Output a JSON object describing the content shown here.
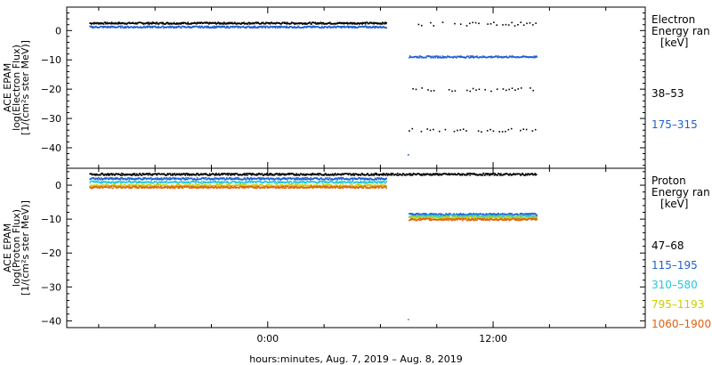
{
  "chart_data": [
    {
      "type": "scatter",
      "panel": "electron",
      "ylabel_lines": [
        "ACE EPAM",
        "log(Electron Flux)",
        "[1/(cm²s ster MeV)]"
      ],
      "ylim": [
        -47,
        8
      ],
      "yticks": [
        0,
        -10,
        -20,
        -30,
        -40
      ],
      "ytick_labels": [
        "0",
        "−10",
        "−20",
        "−30",
        "−40"
      ],
      "legend_title_lines": [
        "Electron",
        "Energy ran",
        "[keV]"
      ],
      "series": [
        {
          "name": "38–53",
          "color": "#000000",
          "segments": [
            {
              "x0": -9.5,
              "x1": 6.3,
              "y": 2.5,
              "style": "dense"
            },
            {
              "x0": 8.0,
              "x1": 14.3,
              "y": 2.2,
              "style": "sparse"
            },
            {
              "x0": 7.7,
              "x1": 14.3,
              "y": -20.2,
              "style": "sparse"
            },
            {
              "x0": 7.5,
              "x1": 14.3,
              "y": -34.0,
              "style": "sparse"
            }
          ]
        },
        {
          "name": "175–315",
          "color": "#1f5fd0",
          "segments": [
            {
              "x0": -9.5,
              "x1": 6.3,
              "y": 1.2,
              "style": "dense"
            },
            {
              "x0": 7.5,
              "x1": 14.3,
              "y": -9.0,
              "style": "dense"
            },
            {
              "x0": 7.45,
              "x1": 7.6,
              "y": -42.0,
              "style": "sparse"
            }
          ]
        }
      ]
    },
    {
      "type": "scatter",
      "panel": "proton",
      "ylabel_lines": [
        "ACE EPAM",
        "log(Proton Flux)",
        "[1/(cm²s ster MeV)]"
      ],
      "ylim": [
        -42,
        5
      ],
      "yticks": [
        0,
        -10,
        -20,
        -30,
        -40
      ],
      "ytick_labels": [
        "0",
        "−10",
        "−20",
        "−30",
        "−40"
      ],
      "legend_title_lines": [
        "Proton",
        "Energy ran",
        "[keV]"
      ],
      "series": [
        {
          "name": "47–68",
          "color": "#000000",
          "segments": [
            {
              "x0": -9.5,
              "x1": 14.3,
              "y": 3.2,
              "style": "dense"
            }
          ]
        },
        {
          "name": "115–195",
          "color": "#1f5fd0",
          "segments": [
            {
              "x0": -9.5,
              "x1": 6.3,
              "y": 1.9,
              "style": "dense"
            },
            {
              "x0": 7.5,
              "x1": 14.3,
              "y": -8.6,
              "style": "dense"
            }
          ]
        },
        {
          "name": "310–580",
          "color": "#22c8d8",
          "segments": [
            {
              "x0": -9.5,
              "x1": 6.3,
              "y": 0.9,
              "style": "dense"
            },
            {
              "x0": 7.5,
              "x1": 14.3,
              "y": -9.1,
              "style": "dense"
            }
          ]
        },
        {
          "name": "795–1193",
          "color": "#c8d000",
          "segments": [
            {
              "x0": -9.5,
              "x1": 6.3,
              "y": -0.1,
              "style": "dense"
            },
            {
              "x0": 7.5,
              "x1": 14.3,
              "y": -9.6,
              "style": "dense"
            }
          ]
        },
        {
          "name": "1060–1900",
          "color": "#e06010",
          "segments": [
            {
              "x0": -9.5,
              "x1": 6.3,
              "y": -0.6,
              "style": "dense"
            },
            {
              "x0": 7.5,
              "x1": 14.3,
              "y": -10.1,
              "style": "dense"
            },
            {
              "x0": 7.45,
              "x1": 7.6,
              "y": -39.8,
              "style": "sparse"
            }
          ]
        }
      ]
    }
  ],
  "x_axis": {
    "xlim": [
      -10.7,
      20.1
    ],
    "ticks": [
      0,
      12
    ],
    "tick_labels": [
      "0:00",
      "12:00"
    ],
    "minor_ticks": [
      -9,
      -6,
      -3,
      3,
      6,
      9,
      15,
      18
    ],
    "xlabel": "hours:minutes, Aug.  7, 2019 – Aug.  8, 2019"
  }
}
